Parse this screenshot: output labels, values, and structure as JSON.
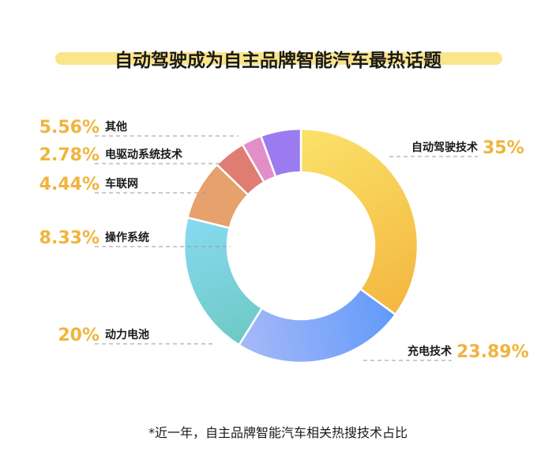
{
  "chart_data": {
    "type": "pie",
    "variant": "donut",
    "title": "自动驾驶成为自主品牌智能汽车最热话题",
    "note": "*近一年，自主品牌智能汽车相关热搜技术占比",
    "slices": [
      {
        "label": "自动驾驶技术",
        "value": 35,
        "display": "35%",
        "colors": [
          "#fbe26a",
          "#f3b73f"
        ]
      },
      {
        "label": "充电技术",
        "value": 23.89,
        "display": "23.89%",
        "colors": [
          "#619afa",
          "#a7b9f8"
        ]
      },
      {
        "label": "动力电池",
        "value": 20,
        "display": "20%",
        "colors": [
          "#6ec9c4",
          "#87daf1"
        ]
      },
      {
        "label": "操作系统",
        "value": 8.33,
        "display": "8.33%",
        "colors": [
          "#e6a16c",
          "#e6a16c"
        ]
      },
      {
        "label": "车联网",
        "value": 4.44,
        "display": "4.44%",
        "colors": [
          "#df7d72",
          "#df7d72"
        ]
      },
      {
        "label": "电驱动系统技术",
        "value": 2.78,
        "display": "2.78%",
        "colors": [
          "#e28ec9",
          "#e28ec9"
        ]
      },
      {
        "label": "其他",
        "value": 5.56,
        "display": "5.56%",
        "colors": [
          "#9b7cf0",
          "#9b7cf0"
        ]
      }
    ],
    "colors": {
      "percent_text": "#f0b43c",
      "title_highlight": "#fbe58a",
      "leader_line": "#9a9a9a"
    }
  }
}
